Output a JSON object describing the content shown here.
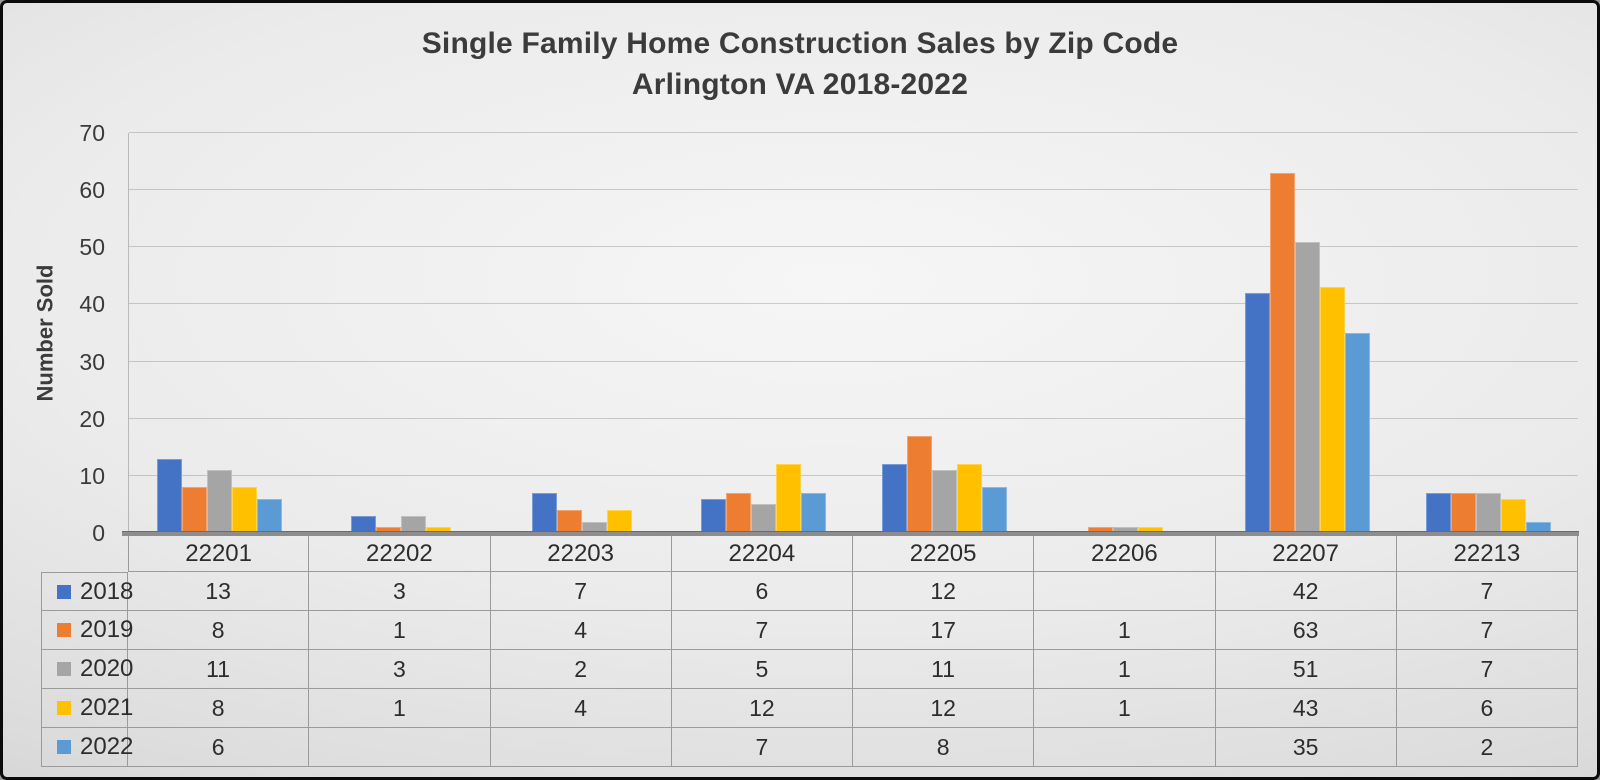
{
  "chart_data": {
    "type": "bar",
    "title": "Single Family Home Construction Sales by Zip Code",
    "subtitle": "Arlington VA 2018-2022",
    "ylabel": "Number Sold",
    "ylim": [
      0,
      70
    ],
    "yticks": [
      0,
      10,
      20,
      30,
      40,
      50,
      60,
      70
    ],
    "grid": true,
    "legend_position": "data-table-left-column",
    "categories": [
      "22201",
      "22202",
      "22203",
      "22204",
      "22205",
      "22206",
      "22207",
      "22213"
    ],
    "series": [
      {
        "name": "2018",
        "color": "#4472C4",
        "values": [
          13,
          3,
          7,
          6,
          12,
          null,
          42,
          7
        ]
      },
      {
        "name": "2019",
        "color": "#ED7D31",
        "values": [
          8,
          1,
          4,
          7,
          17,
          1,
          63,
          7
        ]
      },
      {
        "name": "2020",
        "color": "#A5A5A5",
        "values": [
          11,
          3,
          2,
          5,
          11,
          1,
          51,
          7
        ]
      },
      {
        "name": "2021",
        "color": "#FFC000",
        "values": [
          8,
          1,
          4,
          12,
          12,
          1,
          43,
          6
        ]
      },
      {
        "name": "2022",
        "color": "#5B9BD5",
        "values": [
          6,
          null,
          null,
          7,
          8,
          null,
          35,
          2
        ]
      }
    ],
    "data_table_shown": true
  },
  "style_colors": {
    "title_text": "#3b3b3b",
    "axis_line": "#8d8d8d",
    "table_border": "#9b9b9b",
    "gridline": "#8f8f8f"
  }
}
